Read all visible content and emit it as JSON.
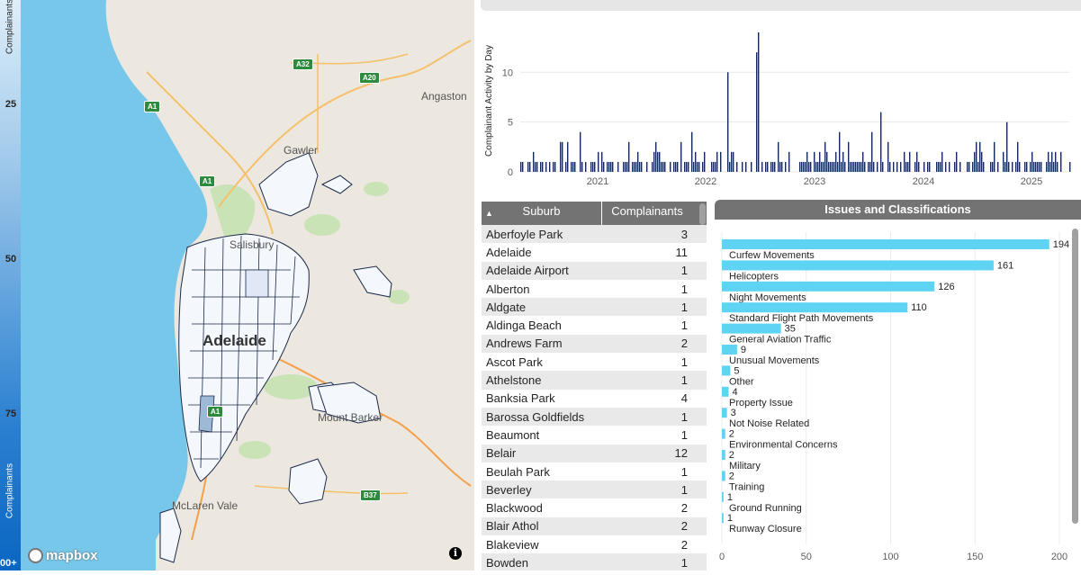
{
  "legend": {
    "label": "Complainants",
    "ticks": [
      "25",
      "50",
      "75"
    ],
    "bottom_label": "00+"
  },
  "map": {
    "places": {
      "angaston": "Angaston",
      "gawler": "Gawler",
      "salisbury": "Salisbury",
      "adelaide": "Adelaide",
      "mount_barker": "Mount Barker",
      "mclaren_vale": "McLaren Vale"
    },
    "roads": {
      "a32": "A32",
      "a20": "A20",
      "a1_north": "A1",
      "a1_mid": "A1",
      "a1_south": "A1",
      "b37": "B37"
    },
    "attribution": "mapbox",
    "info_glyph": "i"
  },
  "timechart": {
    "ylabel": "Complainant Activity by Day",
    "yticks": [
      "0",
      "5",
      "10"
    ],
    "xticks": [
      "2021",
      "2022",
      "2023",
      "2024",
      "2025"
    ],
    "bar_color": "#12295a"
  },
  "table": {
    "columns": [
      "Suburb",
      "Complainants"
    ],
    "sort_glyph": "▲",
    "rows": [
      {
        "suburb": "Aberfoyle Park",
        "count": "3"
      },
      {
        "suburb": "Adelaide",
        "count": "11"
      },
      {
        "suburb": "Adelaide Airport",
        "count": "1"
      },
      {
        "suburb": "Alberton",
        "count": "1"
      },
      {
        "suburb": "Aldgate",
        "count": "1"
      },
      {
        "suburb": "Aldinga Beach",
        "count": "1"
      },
      {
        "suburb": "Andrews Farm",
        "count": "2"
      },
      {
        "suburb": "Ascot Park",
        "count": "1"
      },
      {
        "suburb": "Athelstone",
        "count": "1"
      },
      {
        "suburb": "Banksia Park",
        "count": "4"
      },
      {
        "suburb": "Barossa Goldfields",
        "count": "1"
      },
      {
        "suburb": "Beaumont",
        "count": "1"
      },
      {
        "suburb": "Belair",
        "count": "12"
      },
      {
        "suburb": "Beulah Park",
        "count": "1"
      },
      {
        "suburb": "Beverley",
        "count": "1"
      },
      {
        "suburb": "Blackwood",
        "count": "2"
      },
      {
        "suburb": "Blair Athol",
        "count": "2"
      },
      {
        "suburb": "Blakeview",
        "count": "2"
      },
      {
        "suburb": "Bowden",
        "count": "1"
      }
    ]
  },
  "issues": {
    "title": "Issues and Classifications",
    "bar_color": "#5fd3f3",
    "xticks": [
      "0",
      "50",
      "100",
      "150",
      "200"
    ],
    "xmax": 200,
    "items": [
      {
        "label": "Curfew Movements",
        "value": 194,
        "value_label": "194"
      },
      {
        "label": "Helicopters",
        "value": 161,
        "value_label": "161"
      },
      {
        "label": "Night Movements",
        "value": 126,
        "value_label": "126"
      },
      {
        "label": "Standard Flight Path Movements",
        "value": 110,
        "value_label": "110"
      },
      {
        "label": "General Aviation Traffic",
        "value": 35,
        "value_label": "35"
      },
      {
        "label": "Unusual Movements",
        "value": 9,
        "value_label": "9"
      },
      {
        "label": "Other",
        "value": 5,
        "value_label": "5"
      },
      {
        "label": "Property Issue",
        "value": 4,
        "value_label": "4"
      },
      {
        "label": "Not Noise Related",
        "value": 3,
        "value_label": "3"
      },
      {
        "label": "Environmental Concerns",
        "value": 2,
        "value_label": "2"
      },
      {
        "label": "Military",
        "value": 2,
        "value_label": "2"
      },
      {
        "label": "Training",
        "value": 2,
        "value_label": "2"
      },
      {
        "label": "Ground Running",
        "value": 1,
        "value_label": "1"
      },
      {
        "label": "Runway Closure",
        "value": 1,
        "value_label": "1"
      }
    ]
  }
}
